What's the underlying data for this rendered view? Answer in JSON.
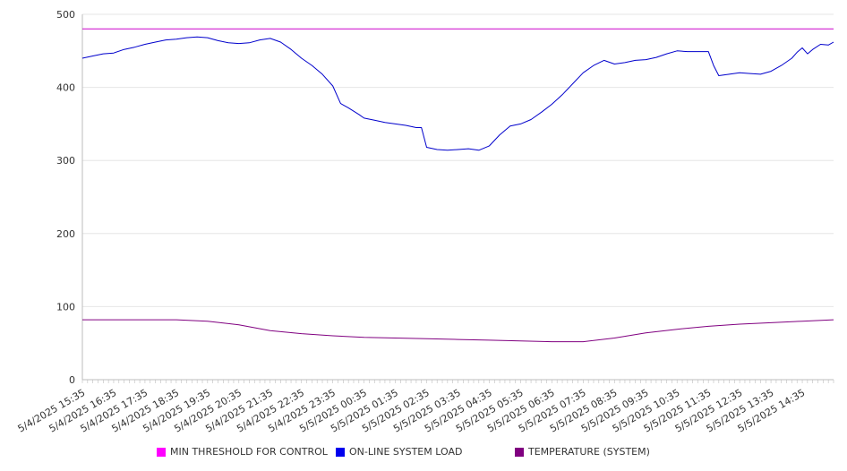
{
  "chart_data": {
    "type": "line",
    "title": "",
    "xlabel": "",
    "ylabel": "",
    "ylim": [
      0,
      500
    ],
    "yticks": [
      0,
      100,
      200,
      300,
      400,
      500
    ],
    "grid": "horizontal",
    "legend_position": "bottom",
    "x_ticks": [
      "5/4/2025 15:35",
      "5/4/2025 16:35",
      "5/4/2025 17:35",
      "5/4/2025 18:35",
      "5/4/2025 19:35",
      "5/4/2025 20:35",
      "5/4/2025 21:35",
      "5/4/2025 22:35",
      "5/4/2025 23:35",
      "5/5/2025 00:35",
      "5/5/2025 01:35",
      "5/5/2025 02:35",
      "5/5/2025 03:35",
      "5/5/2025 04:35",
      "5/5/2025 05:35",
      "5/5/2025 06:35",
      "5/5/2025 07:35",
      "5/5/2025 08:35",
      "5/5/2025 09:35",
      "5/5/2025 10:35",
      "5/5/2025 11:35",
      "5/5/2025 12:35",
      "5/5/2025 13:35",
      "5/5/2025 14:35"
    ],
    "x_end": "5/5/2025 15:35",
    "series": [
      {
        "name": "MIN THRESHOLD FOR CONTROL",
        "color": "#cc00cc",
        "points": [
          [
            "5/4/2025 15:35",
            480
          ],
          [
            "5/5/2025 15:35",
            480
          ]
        ]
      },
      {
        "name": "ON-LINE SYSTEM LOAD",
        "color": "#0000cc",
        "points": [
          [
            "5/4/2025 15:35",
            440
          ],
          [
            "5/4/2025 15:55",
            443
          ],
          [
            "5/4/2025 16:15",
            446
          ],
          [
            "5/4/2025 16:35",
            447
          ],
          [
            "5/4/2025 16:55",
            452
          ],
          [
            "5/4/2025 17:15",
            455
          ],
          [
            "5/4/2025 17:35",
            459
          ],
          [
            "5/4/2025 17:55",
            462
          ],
          [
            "5/4/2025 18:15",
            465
          ],
          [
            "5/4/2025 18:35",
            466
          ],
          [
            "5/4/2025 18:55",
            468
          ],
          [
            "5/4/2025 19:15",
            469
          ],
          [
            "5/4/2025 19:35",
            468
          ],
          [
            "5/4/2025 19:55",
            464
          ],
          [
            "5/4/2025 20:15",
            461
          ],
          [
            "5/4/2025 20:35",
            460
          ],
          [
            "5/4/2025 20:55",
            461
          ],
          [
            "5/4/2025 21:15",
            465
          ],
          [
            "5/4/2025 21:35",
            467
          ],
          [
            "5/4/2025 21:55",
            462
          ],
          [
            "5/4/2025 22:15",
            452
          ],
          [
            "5/4/2025 22:35",
            440
          ],
          [
            "5/4/2025 22:55",
            430
          ],
          [
            "5/4/2025 23:15",
            418
          ],
          [
            "5/4/2025 23:35",
            402
          ],
          [
            "5/4/2025 23:50",
            378
          ],
          [
            "5/5/2025 00:05",
            372
          ],
          [
            "5/5/2025 00:25",
            363
          ],
          [
            "5/5/2025 00:35",
            358
          ],
          [
            "5/5/2025 00:55",
            355
          ],
          [
            "5/5/2025 01:15",
            352
          ],
          [
            "5/5/2025 01:35",
            350
          ],
          [
            "5/5/2025 01:55",
            348
          ],
          [
            "5/5/2025 02:15",
            345
          ],
          [
            "5/5/2025 02:25",
            345
          ],
          [
            "5/5/2025 02:35",
            318
          ],
          [
            "5/5/2025 02:55",
            315
          ],
          [
            "5/5/2025 03:15",
            314
          ],
          [
            "5/5/2025 03:35",
            315
          ],
          [
            "5/5/2025 03:55",
            316
          ],
          [
            "5/5/2025 04:15",
            314
          ],
          [
            "5/5/2025 04:35",
            320
          ],
          [
            "5/5/2025 04:55",
            335
          ],
          [
            "5/5/2025 05:15",
            347
          ],
          [
            "5/5/2025 05:35",
            350
          ],
          [
            "5/5/2025 05:55",
            356
          ],
          [
            "5/5/2025 06:15",
            366
          ],
          [
            "5/5/2025 06:35",
            377
          ],
          [
            "5/5/2025 06:55",
            390
          ],
          [
            "5/5/2025 07:15",
            405
          ],
          [
            "5/5/2025 07:35",
            420
          ],
          [
            "5/5/2025 07:55",
            430
          ],
          [
            "5/5/2025 08:15",
            437
          ],
          [
            "5/5/2025 08:35",
            432
          ],
          [
            "5/5/2025 08:55",
            434
          ],
          [
            "5/5/2025 09:15",
            437
          ],
          [
            "5/5/2025 09:35",
            438
          ],
          [
            "5/5/2025 09:55",
            441
          ],
          [
            "5/5/2025 10:15",
            446
          ],
          [
            "5/5/2025 10:35",
            450
          ],
          [
            "5/5/2025 10:55",
            449
          ],
          [
            "5/5/2025 11:15",
            449
          ],
          [
            "5/5/2025 11:35",
            449
          ],
          [
            "5/5/2025 11:45",
            430
          ],
          [
            "5/5/2025 11:55",
            416
          ],
          [
            "5/5/2025 12:15",
            418
          ],
          [
            "5/5/2025 12:35",
            420
          ],
          [
            "5/5/2025 12:55",
            419
          ],
          [
            "5/5/2025 13:15",
            418
          ],
          [
            "5/5/2025 13:35",
            422
          ],
          [
            "5/5/2025 13:55",
            430
          ],
          [
            "5/5/2025 14:15",
            440
          ],
          [
            "5/5/2025 14:25",
            448
          ],
          [
            "5/5/2025 14:35",
            454
          ],
          [
            "5/5/2025 14:45",
            446
          ],
          [
            "5/5/2025 14:55",
            452
          ],
          [
            "5/5/2025 15:10",
            459
          ],
          [
            "5/5/2025 15:25",
            458
          ],
          [
            "5/5/2025 15:35",
            462
          ]
        ]
      },
      {
        "name": "TEMPERATURE (SYSTEM)",
        "color": "#800080",
        "points": [
          [
            "5/4/2025 15:35",
            82
          ],
          [
            "5/4/2025 16:35",
            82
          ],
          [
            "5/4/2025 17:35",
            82
          ],
          [
            "5/4/2025 18:35",
            82
          ],
          [
            "5/4/2025 19:35",
            80
          ],
          [
            "5/4/2025 20:35",
            75
          ],
          [
            "5/4/2025 21:35",
            67
          ],
          [
            "5/4/2025 22:35",
            63
          ],
          [
            "5/4/2025 23:35",
            60
          ],
          [
            "5/5/2025 00:35",
            58
          ],
          [
            "5/5/2025 01:35",
            57
          ],
          [
            "5/5/2025 02:35",
            56
          ],
          [
            "5/5/2025 03:35",
            55
          ],
          [
            "5/5/2025 04:35",
            54
          ],
          [
            "5/5/2025 05:35",
            53
          ],
          [
            "5/5/2025 06:35",
            52
          ],
          [
            "5/5/2025 07:35",
            52
          ],
          [
            "5/5/2025 08:35",
            57
          ],
          [
            "5/5/2025 09:35",
            64
          ],
          [
            "5/5/2025 10:35",
            69
          ],
          [
            "5/5/2025 11:35",
            73
          ],
          [
            "5/5/2025 12:35",
            76
          ],
          [
            "5/5/2025 13:35",
            78
          ],
          [
            "5/5/2025 14:35",
            80
          ],
          [
            "5/5/2025 15:35",
            82
          ]
        ]
      }
    ]
  },
  "legend": [
    {
      "label": "MIN THRESHOLD FOR CONTROL",
      "color": "#ff00ff"
    },
    {
      "label": "ON-LINE SYSTEM LOAD",
      "color": "#0000ee"
    },
    {
      "label": "TEMPERATURE (SYSTEM)",
      "color": "#800080"
    }
  ]
}
